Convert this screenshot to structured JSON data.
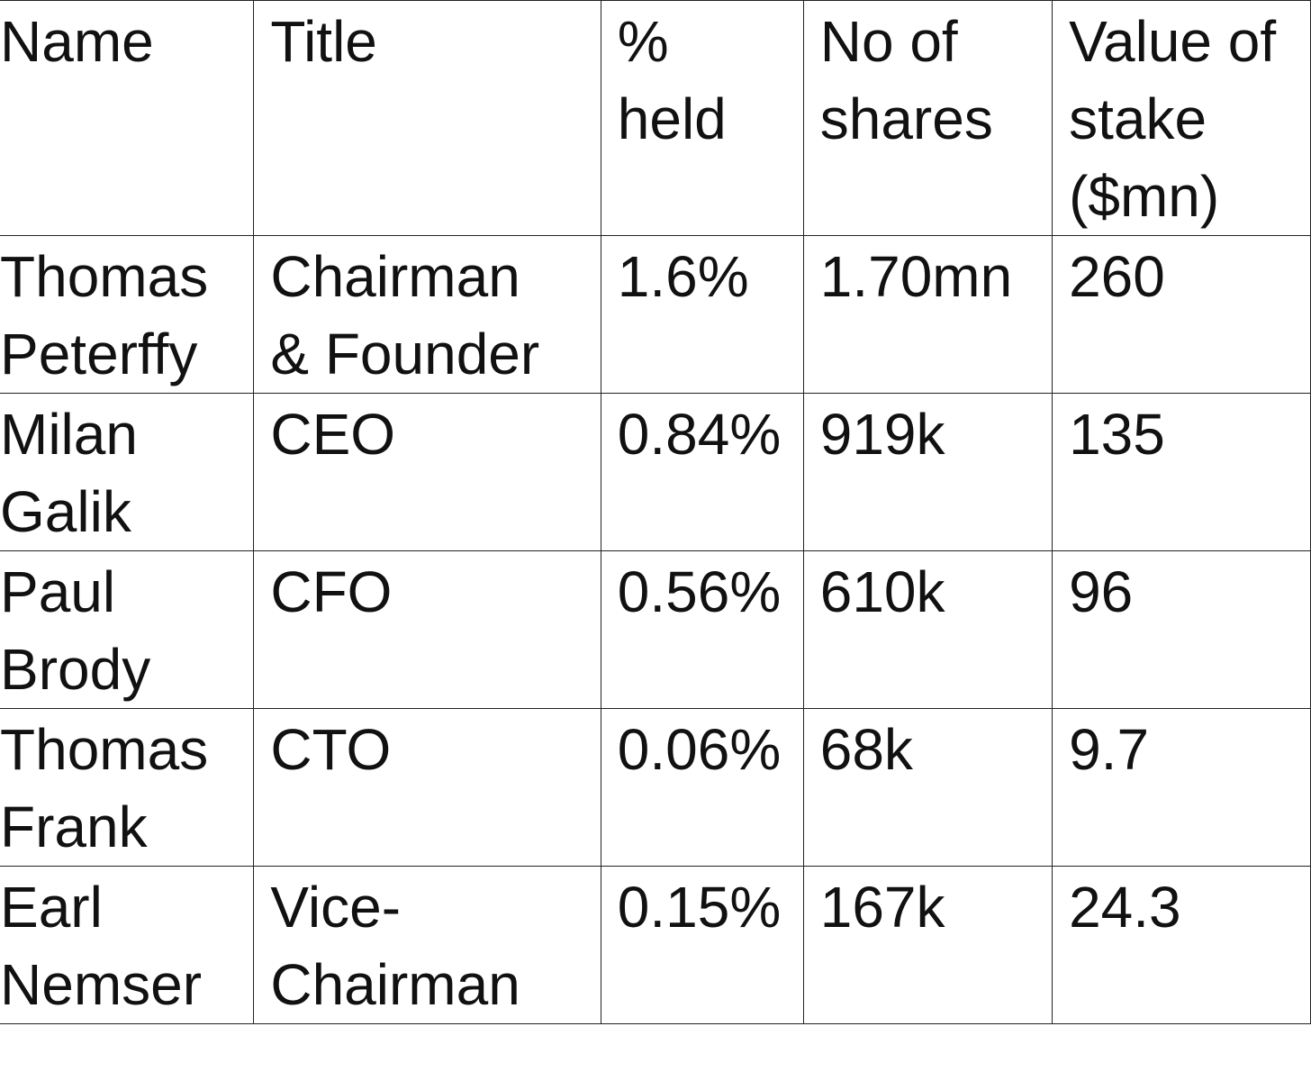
{
  "table": {
    "headers": [
      [
        "Name"
      ],
      [
        "Title"
      ],
      [
        "%",
        "held"
      ],
      [
        "No of",
        "shares"
      ],
      [
        "Value of",
        "stake",
        "($mn)"
      ]
    ],
    "rows": [
      [
        [
          "Thomas",
          "Peterffy"
        ],
        [
          "Chairman",
          "& Founder"
        ],
        [
          "1.6%"
        ],
        [
          "1.70mn"
        ],
        [
          "260"
        ]
      ],
      [
        [
          "Milan",
          "Galik"
        ],
        [
          "CEO"
        ],
        [
          "0.84%"
        ],
        [
          "919k"
        ],
        [
          "135"
        ]
      ],
      [
        [
          "Paul",
          "Brody"
        ],
        [
          "CFO"
        ],
        [
          "0.56%"
        ],
        [
          "610k"
        ],
        [
          "96"
        ]
      ],
      [
        [
          "Thomas",
          "Frank"
        ],
        [
          "CTO"
        ],
        [
          "0.06%"
        ],
        [
          "68k"
        ],
        [
          "9.7"
        ]
      ],
      [
        [
          "Earl",
          "Nemser"
        ],
        [
          "Vice-",
          "Chairman"
        ],
        [
          "0.15%"
        ],
        [
          "167k"
        ],
        [
          "24.3"
        ]
      ]
    ]
  }
}
